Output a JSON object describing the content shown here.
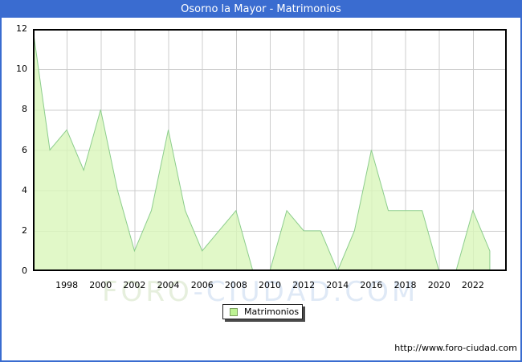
{
  "window": {
    "title": "Osorno la Mayor - Matrimonios"
  },
  "colors": {
    "accent_blue": "#3a6cd0",
    "area_fill": "#d9f6ba",
    "area_line": "#8ccd8c",
    "gridline": "#cccccc",
    "plot_border": "#000000",
    "legend_swatch_fill": "#bdf293",
    "legend_swatch_border": "#7da05f",
    "watermark_green": "#e6efdd",
    "watermark_blue": "#dfe9f6"
  },
  "watermark": {
    "part1": "FORO",
    "part2": "-CIUDAD.COM"
  },
  "legend": {
    "label": "Matrimonios"
  },
  "footer": {
    "url": "http://www.foro-ciudad.com"
  },
  "chart_data": {
    "type": "area",
    "title": "Osorno la Mayor - Matrimonios",
    "series_name": "Matrimonios",
    "x": [
      1996,
      1997,
      1998,
      1999,
      2000,
      2001,
      2002,
      2003,
      2004,
      2005,
      2006,
      2007,
      2008,
      2009,
      2010,
      2011,
      2012,
      2013,
      2014,
      2015,
      2016,
      2017,
      2018,
      2019,
      2020,
      2021,
      2022,
      2023
    ],
    "values": [
      12,
      6,
      7,
      5,
      8,
      4,
      1,
      3,
      7,
      3,
      1,
      2,
      3,
      0,
      0,
      3,
      2,
      2,
      0,
      2,
      6,
      3,
      3,
      3,
      0,
      0,
      3,
      1
    ],
    "xlabel": "",
    "ylabel": "",
    "xlim": [
      1996,
      2024
    ],
    "ylim": [
      0,
      12
    ],
    "xticks": [
      1998,
      2000,
      2002,
      2004,
      2006,
      2008,
      2010,
      2012,
      2014,
      2016,
      2018,
      2020,
      2022
    ],
    "yticks": [
      0,
      2,
      4,
      6,
      8,
      10,
      12
    ],
    "grid": true,
    "legend_position": "bottom-center"
  }
}
